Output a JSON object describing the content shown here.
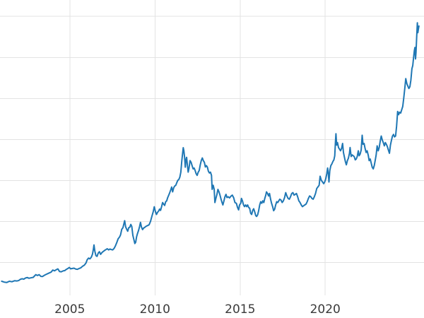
{
  "chart_data": {
    "type": "line",
    "title": "",
    "xlabel": "",
    "ylabel": "",
    "legend": "none",
    "grid": true,
    "line_color": "#1f77b4",
    "grid_color": "#e3e3e3",
    "tick_label_color": "#3a3a3a",
    "background_color": "#ffffff",
    "xlim": [
      2000.9,
      2025.8
    ],
    "ylim": [
      100,
      3700
    ],
    "xticks": [
      {
        "value": 2005,
        "label": "2005"
      },
      {
        "value": 2010,
        "label": "2010"
      },
      {
        "value": 2015,
        "label": "2015"
      },
      {
        "value": 2020,
        "label": "2020"
      }
    ],
    "y_gridlines": [
      500,
      1000,
      1500,
      2000,
      2500,
      3000,
      3500
    ],
    "points": [
      [
        2001.0,
        272
      ],
      [
        2001.15,
        262
      ],
      [
        2001.3,
        258
      ],
      [
        2001.45,
        272
      ],
      [
        2001.6,
        266
      ],
      [
        2001.75,
        278
      ],
      [
        2001.9,
        276
      ],
      [
        2002.0,
        282
      ],
      [
        2002.1,
        296
      ],
      [
        2002.2,
        302
      ],
      [
        2002.3,
        298
      ],
      [
        2002.4,
        312
      ],
      [
        2002.5,
        318
      ],
      [
        2002.6,
        308
      ],
      [
        2002.7,
        314
      ],
      [
        2002.85,
        320
      ],
      [
        2003.0,
        352
      ],
      [
        2003.1,
        342
      ],
      [
        2003.2,
        352
      ],
      [
        2003.3,
        332
      ],
      [
        2003.4,
        330
      ],
      [
        2003.5,
        345
      ],
      [
        2003.6,
        355
      ],
      [
        2003.75,
        370
      ],
      [
        2003.9,
        383
      ],
      [
        2004.0,
        408
      ],
      [
        2004.1,
        400
      ],
      [
        2004.2,
        412
      ],
      [
        2004.3,
        423
      ],
      [
        2004.4,
        390
      ],
      [
        2004.5,
        388
      ],
      [
        2004.6,
        398
      ],
      [
        2004.7,
        402
      ],
      [
        2004.8,
        418
      ],
      [
        2004.9,
        430
      ],
      [
        2004.97,
        440
      ],
      [
        2005.05,
        424
      ],
      [
        2005.15,
        428
      ],
      [
        2005.25,
        432
      ],
      [
        2005.35,
        420
      ],
      [
        2005.45,
        418
      ],
      [
        2005.55,
        428
      ],
      [
        2005.65,
        437
      ],
      [
        2005.75,
        456
      ],
      [
        2005.85,
        468
      ],
      [
        2005.95,
        495
      ],
      [
        2006.02,
        535
      ],
      [
        2006.1,
        555
      ],
      [
        2006.18,
        545
      ],
      [
        2006.26,
        565
      ],
      [
        2006.33,
        600
      ],
      [
        2006.38,
        655
      ],
      [
        2006.42,
        715
      ],
      [
        2006.47,
        640
      ],
      [
        2006.53,
        585
      ],
      [
        2006.6,
        575
      ],
      [
        2006.67,
        615
      ],
      [
        2006.74,
        632
      ],
      [
        2006.81,
        600
      ],
      [
        2006.89,
        622
      ],
      [
        2006.96,
        635
      ],
      [
        2007.04,
        648
      ],
      [
        2007.12,
        658
      ],
      [
        2007.2,
        668
      ],
      [
        2007.28,
        655
      ],
      [
        2007.36,
        665
      ],
      [
        2007.44,
        658
      ],
      [
        2007.52,
        655
      ],
      [
        2007.6,
        672
      ],
      [
        2007.68,
        705
      ],
      [
        2007.76,
        745
      ],
      [
        2007.84,
        790
      ],
      [
        2007.92,
        812
      ],
      [
        2007.98,
        838
      ],
      [
        2008.05,
        905
      ],
      [
        2008.12,
        925
      ],
      [
        2008.18,
        975
      ],
      [
        2008.22,
        1010
      ],
      [
        2008.28,
        935
      ],
      [
        2008.34,
        905
      ],
      [
        2008.4,
        882
      ],
      [
        2008.46,
        925
      ],
      [
        2008.52,
        930
      ],
      [
        2008.58,
        965
      ],
      [
        2008.64,
        940
      ],
      [
        2008.7,
        832
      ],
      [
        2008.76,
        782
      ],
      [
        2008.82,
        732
      ],
      [
        2008.87,
        748
      ],
      [
        2008.92,
        815
      ],
      [
        2008.97,
        852
      ],
      [
        2009.04,
        892
      ],
      [
        2009.1,
        942
      ],
      [
        2009.15,
        990
      ],
      [
        2009.21,
        932
      ],
      [
        2009.27,
        902
      ],
      [
        2009.34,
        922
      ],
      [
        2009.42,
        932
      ],
      [
        2009.5,
        945
      ],
      [
        2009.58,
        952
      ],
      [
        2009.66,
        962
      ],
      [
        2009.74,
        1002
      ],
      [
        2009.82,
        1062
      ],
      [
        2009.9,
        1122
      ],
      [
        2009.96,
        1180
      ],
      [
        2010.03,
        1120
      ],
      [
        2010.09,
        1086
      ],
      [
        2010.15,
        1112
      ],
      [
        2010.21,
        1126
      ],
      [
        2010.27,
        1152
      ],
      [
        2010.33,
        1136
      ],
      [
        2010.39,
        1182
      ],
      [
        2010.45,
        1232
      ],
      [
        2010.51,
        1212
      ],
      [
        2010.57,
        1196
      ],
      [
        2010.63,
        1242
      ],
      [
        2010.69,
        1252
      ],
      [
        2010.75,
        1292
      ],
      [
        2010.81,
        1322
      ],
      [
        2010.87,
        1352
      ],
      [
        2010.93,
        1388
      ],
      [
        2010.98,
        1420
      ],
      [
        2011.04,
        1362
      ],
      [
        2011.1,
        1412
      ],
      [
        2011.16,
        1432
      ],
      [
        2011.22,
        1442
      ],
      [
        2011.28,
        1472
      ],
      [
        2011.34,
        1502
      ],
      [
        2011.4,
        1512
      ],
      [
        2011.46,
        1542
      ],
      [
        2011.52,
        1602
      ],
      [
        2011.58,
        1742
      ],
      [
        2011.62,
        1822
      ],
      [
        2011.66,
        1900
      ],
      [
        2011.7,
        1862
      ],
      [
        2011.74,
        1782
      ],
      [
        2011.78,
        1662
      ],
      [
        2011.82,
        1752
      ],
      [
        2011.86,
        1782
      ],
      [
        2011.9,
        1692
      ],
      [
        2011.95,
        1602
      ],
      [
        2012.0,
        1652
      ],
      [
        2012.06,
        1742
      ],
      [
        2012.12,
        1722
      ],
      [
        2012.18,
        1682
      ],
      [
        2012.24,
        1642
      ],
      [
        2012.3,
        1652
      ],
      [
        2012.36,
        1622
      ],
      [
        2012.42,
        1582
      ],
      [
        2012.48,
        1562
      ],
      [
        2012.54,
        1602
      ],
      [
        2012.6,
        1622
      ],
      [
        2012.66,
        1692
      ],
      [
        2012.72,
        1742
      ],
      [
        2012.78,
        1775
      ],
      [
        2012.84,
        1742
      ],
      [
        2012.9,
        1722
      ],
      [
        2012.96,
        1665
      ],
      [
        2013.02,
        1682
      ],
      [
        2013.08,
        1662
      ],
      [
        2013.14,
        1612
      ],
      [
        2013.2,
        1592
      ],
      [
        2013.26,
        1602
      ],
      [
        2013.32,
        1562
      ],
      [
        2013.36,
        1392
      ],
      [
        2013.42,
        1442
      ],
      [
        2013.48,
        1392
      ],
      [
        2013.52,
        1232
      ],
      [
        2013.58,
        1282
      ],
      [
        2013.64,
        1332
      ],
      [
        2013.7,
        1392
      ],
      [
        2013.76,
        1362
      ],
      [
        2013.82,
        1322
      ],
      [
        2013.88,
        1272
      ],
      [
        2013.94,
        1232
      ],
      [
        2013.99,
        1202
      ],
      [
        2014.05,
        1252
      ],
      [
        2014.11,
        1302
      ],
      [
        2014.17,
        1332
      ],
      [
        2014.23,
        1292
      ],
      [
        2014.3,
        1302
      ],
      [
        2014.38,
        1288
      ],
      [
        2014.46,
        1308
      ],
      [
        2014.54,
        1322
      ],
      [
        2014.62,
        1292
      ],
      [
        2014.7,
        1232
      ],
      [
        2014.78,
        1222
      ],
      [
        2014.85,
        1172
      ],
      [
        2014.91,
        1142
      ],
      [
        2014.97,
        1202
      ],
      [
        2015.04,
        1222
      ],
      [
        2015.08,
        1282
      ],
      [
        2015.14,
        1252
      ],
      [
        2015.2,
        1202
      ],
      [
        2015.26,
        1182
      ],
      [
        2015.32,
        1202
      ],
      [
        2015.38,
        1182
      ],
      [
        2015.44,
        1202
      ],
      [
        2015.5,
        1172
      ],
      [
        2015.56,
        1162
      ],
      [
        2015.62,
        1102
      ],
      [
        2015.68,
        1086
      ],
      [
        2015.74,
        1136
      ],
      [
        2015.8,
        1156
      ],
      [
        2015.86,
        1116
      ],
      [
        2015.92,
        1072
      ],
      [
        2015.97,
        1062
      ],
      [
        2016.03,
        1082
      ],
      [
        2016.09,
        1132
      ],
      [
        2016.15,
        1202
      ],
      [
        2016.21,
        1242
      ],
      [
        2016.27,
        1222
      ],
      [
        2016.33,
        1252
      ],
      [
        2016.39,
        1232
      ],
      [
        2016.45,
        1282
      ],
      [
        2016.51,
        1322
      ],
      [
        2016.55,
        1362
      ],
      [
        2016.61,
        1342
      ],
      [
        2016.67,
        1312
      ],
      [
        2016.73,
        1342
      ],
      [
        2016.79,
        1272
      ],
      [
        2016.85,
        1222
      ],
      [
        2016.91,
        1182
      ],
      [
        2016.97,
        1132
      ],
      [
        2017.03,
        1152
      ],
      [
        2017.09,
        1202
      ],
      [
        2017.15,
        1242
      ],
      [
        2017.21,
        1232
      ],
      [
        2017.27,
        1252
      ],
      [
        2017.33,
        1272
      ],
      [
        2017.4,
        1262
      ],
      [
        2017.47,
        1232
      ],
      [
        2017.54,
        1252
      ],
      [
        2017.61,
        1292
      ],
      [
        2017.68,
        1352
      ],
      [
        2017.75,
        1312
      ],
      [
        2017.82,
        1282
      ],
      [
        2017.89,
        1272
      ],
      [
        2017.96,
        1302
      ],
      [
        2018.03,
        1342
      ],
      [
        2018.1,
        1352
      ],
      [
        2018.17,
        1322
      ],
      [
        2018.24,
        1332
      ],
      [
        2018.31,
        1342
      ],
      [
        2018.38,
        1302
      ],
      [
        2018.45,
        1252
      ],
      [
        2018.52,
        1232
      ],
      [
        2018.59,
        1202
      ],
      [
        2018.66,
        1182
      ],
      [
        2018.73,
        1192
      ],
      [
        2018.8,
        1202
      ],
      [
        2018.87,
        1212
      ],
      [
        2018.94,
        1242
      ],
      [
        2019.01,
        1282
      ],
      [
        2019.08,
        1312
      ],
      [
        2019.15,
        1302
      ],
      [
        2019.22,
        1282
      ],
      [
        2019.29,
        1272
      ],
      [
        2019.36,
        1302
      ],
      [
        2019.43,
        1342
      ],
      [
        2019.5,
        1402
      ],
      [
        2019.57,
        1422
      ],
      [
        2019.64,
        1442
      ],
      [
        2019.7,
        1552
      ],
      [
        2019.77,
        1502
      ],
      [
        2019.84,
        1482
      ],
      [
        2019.91,
        1462
      ],
      [
        2019.97,
        1482
      ],
      [
        2020.03,
        1522
      ],
      [
        2020.09,
        1582
      ],
      [
        2020.14,
        1652
      ],
      [
        2020.18,
        1582
      ],
      [
        2020.22,
        1482
      ],
      [
        2020.27,
        1622
      ],
      [
        2020.33,
        1682
      ],
      [
        2020.39,
        1702
      ],
      [
        2020.45,
        1732
      ],
      [
        2020.51,
        1752
      ],
      [
        2020.56,
        1802
      ],
      [
        2020.6,
        1972
      ],
      [
        2020.63,
        2070
      ],
      [
        2020.67,
        1932
      ],
      [
        2020.72,
        1962
      ],
      [
        2020.78,
        1902
      ],
      [
        2020.84,
        1882
      ],
      [
        2020.9,
        1862
      ],
      [
        2020.96,
        1892
      ],
      [
        2021.02,
        1952
      ],
      [
        2021.07,
        1842
      ],
      [
        2021.12,
        1792
      ],
      [
        2021.18,
        1732
      ],
      [
        2021.24,
        1692
      ],
      [
        2021.3,
        1742
      ],
      [
        2021.36,
        1772
      ],
      [
        2021.42,
        1832
      ],
      [
        2021.46,
        1902
      ],
      [
        2021.52,
        1792
      ],
      [
        2021.58,
        1812
      ],
      [
        2021.64,
        1802
      ],
      [
        2021.7,
        1792
      ],
      [
        2021.76,
        1752
      ],
      [
        2021.82,
        1762
      ],
      [
        2021.88,
        1792
      ],
      [
        2021.94,
        1862
      ],
      [
        2021.99,
        1802
      ],
      [
        2022.05,
        1822
      ],
      [
        2022.11,
        1872
      ],
      [
        2022.17,
        2052
      ],
      [
        2022.22,
        1942
      ],
      [
        2022.28,
        1952
      ],
      [
        2022.34,
        1892
      ],
      [
        2022.4,
        1842
      ],
      [
        2022.46,
        1862
      ],
      [
        2022.52,
        1812
      ],
      [
        2022.58,
        1742
      ],
      [
        2022.64,
        1762
      ],
      [
        2022.7,
        1712
      ],
      [
        2022.76,
        1662
      ],
      [
        2022.82,
        1642
      ],
      [
        2022.88,
        1682
      ],
      [
        2022.94,
        1752
      ],
      [
        2022.99,
        1812
      ],
      [
        2023.05,
        1922
      ],
      [
        2023.11,
        1862
      ],
      [
        2023.17,
        1902
      ],
      [
        2023.23,
        1982
      ],
      [
        2023.29,
        2042
      ],
      [
        2023.35,
        1992
      ],
      [
        2023.41,
        1962
      ],
      [
        2023.47,
        1922
      ],
      [
        2023.53,
        1962
      ],
      [
        2023.59,
        1942
      ],
      [
        2023.65,
        1912
      ],
      [
        2023.71,
        1872
      ],
      [
        2023.77,
        1832
      ],
      [
        2023.83,
        1932
      ],
      [
        2023.89,
        1992
      ],
      [
        2023.95,
        2042
      ],
      [
        2024.01,
        2062
      ],
      [
        2024.07,
        2032
      ],
      [
        2024.13,
        2042
      ],
      [
        2024.19,
        2162
      ],
      [
        2024.25,
        2342
      ],
      [
        2024.31,
        2302
      ],
      [
        2024.37,
        2332
      ],
      [
        2024.43,
        2322
      ],
      [
        2024.49,
        2362
      ],
      [
        2024.55,
        2402
      ],
      [
        2024.61,
        2502
      ],
      [
        2024.67,
        2622
      ],
      [
        2024.73,
        2742
      ],
      [
        2024.79,
        2682
      ],
      [
        2024.85,
        2652
      ],
      [
        2024.91,
        2622
      ],
      [
        2024.97,
        2642
      ],
      [
        2025.03,
        2722
      ],
      [
        2025.09,
        2862
      ],
      [
        2025.14,
        2902
      ],
      [
        2025.19,
        3002
      ],
      [
        2025.23,
        3082
      ],
      [
        2025.27,
        3122
      ],
      [
        2025.3,
        2982
      ],
      [
        2025.33,
        3062
      ],
      [
        2025.37,
        3242
      ],
      [
        2025.41,
        3422
      ],
      [
        2025.44,
        3302
      ],
      [
        2025.47,
        3342
      ],
      [
        2025.5,
        3382
      ]
    ]
  }
}
